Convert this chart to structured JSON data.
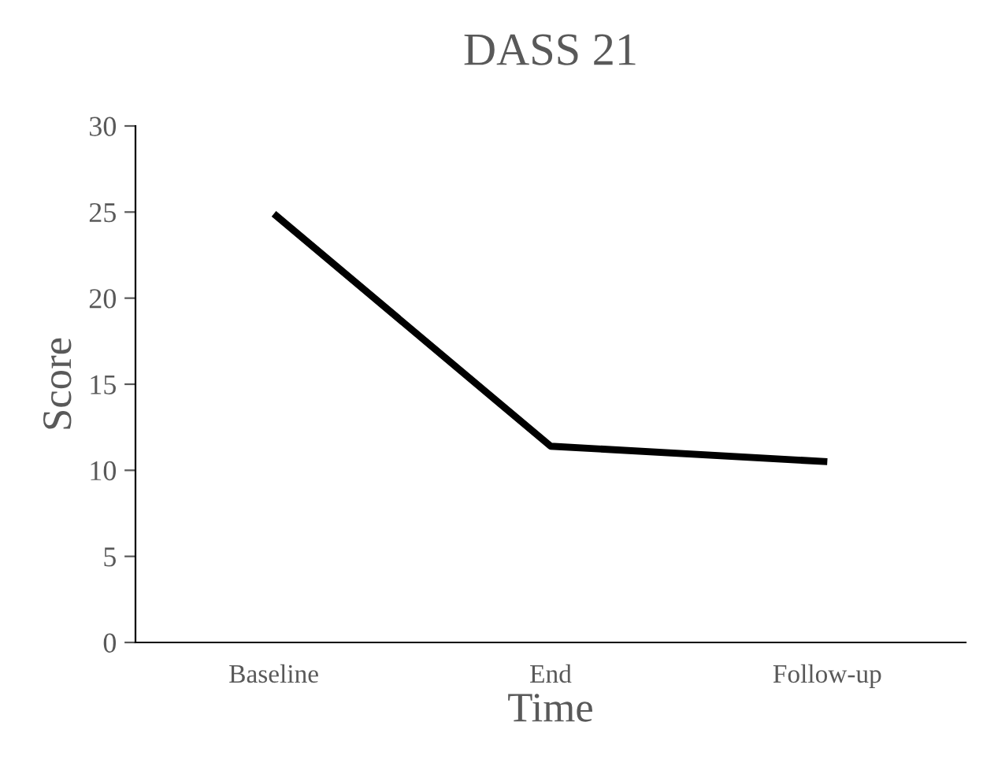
{
  "chart_data": {
    "type": "line",
    "title": "DASS 21",
    "xlabel": "Time",
    "ylabel": "Score",
    "categories": [
      "Baseline",
      "End",
      "Follow-up"
    ],
    "series": [
      {
        "color": "#000000",
        "values": [
          24.9,
          11.4,
          10.5
        ]
      }
    ],
    "ylim": [
      0,
      30
    ],
    "yticks": [
      0,
      5,
      10,
      15,
      20,
      25,
      30
    ],
    "grid": false,
    "legend": false,
    "marker": "none",
    "line_style": "solid"
  }
}
